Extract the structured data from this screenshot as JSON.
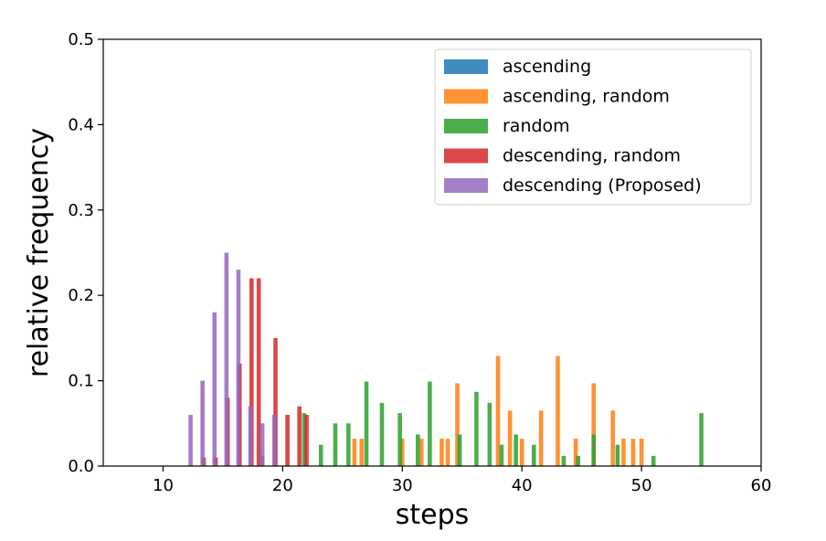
{
  "chart_data": {
    "type": "bar",
    "title": "",
    "xlabel": "steps",
    "ylabel": "relative frequency",
    "xlim": [
      5,
      60
    ],
    "ylim": [
      0,
      0.5
    ],
    "xticks": [
      10,
      20,
      30,
      40,
      50,
      60
    ],
    "yticks": [
      "0.0",
      "0.1",
      "0.2",
      "0.3",
      "0.4",
      "0.5"
    ],
    "legend_position": "top-right",
    "series": [
      {
        "name": "ascending",
        "color": "#1f77b4",
        "points": []
      },
      {
        "name": "ascending, random",
        "color": "#ff7f0e",
        "points": [
          [
            26.0,
            0.032
          ],
          [
            26.6,
            0.032
          ],
          [
            30.0,
            0.032
          ],
          [
            31.6,
            0.032
          ],
          [
            33.3,
            0.032
          ],
          [
            33.8,
            0.032
          ],
          [
            34.6,
            0.097
          ],
          [
            38.0,
            0.129
          ],
          [
            39.0,
            0.065
          ],
          [
            40.0,
            0.032
          ],
          [
            41.6,
            0.065
          ],
          [
            43.0,
            0.129
          ],
          [
            44.5,
            0.032
          ],
          [
            46.0,
            0.097
          ],
          [
            47.6,
            0.065
          ],
          [
            48.5,
            0.032
          ],
          [
            49.3,
            0.032
          ],
          [
            50.0,
            0.032
          ]
        ]
      },
      {
        "name": "random",
        "color": "#2ca02c",
        "points": [
          [
            18.3,
            0.012
          ],
          [
            21.8,
            0.062
          ],
          [
            23.2,
            0.025
          ],
          [
            24.4,
            0.05
          ],
          [
            25.5,
            0.05
          ],
          [
            27.0,
            0.099
          ],
          [
            28.3,
            0.074
          ],
          [
            29.8,
            0.062
          ],
          [
            31.3,
            0.037
          ],
          [
            32.3,
            0.099
          ],
          [
            34.8,
            0.037
          ],
          [
            36.2,
            0.087
          ],
          [
            37.3,
            0.074
          ],
          [
            38.3,
            0.025
          ],
          [
            39.5,
            0.037
          ],
          [
            41.0,
            0.025
          ],
          [
            43.5,
            0.012
          ],
          [
            44.7,
            0.012
          ],
          [
            46.0,
            0.037
          ],
          [
            48.0,
            0.025
          ],
          [
            51.0,
            0.012
          ],
          [
            55.0,
            0.062
          ]
        ]
      },
      {
        "name": "descending, random",
        "color": "#d62728",
        "points": [
          [
            13.4,
            0.01
          ],
          [
            14.4,
            0.01
          ],
          [
            15.4,
            0.08
          ],
          [
            16.4,
            0.12
          ],
          [
            17.4,
            0.22
          ],
          [
            18.0,
            0.22
          ],
          [
            19.4,
            0.15
          ],
          [
            20.4,
            0.06
          ],
          [
            21.4,
            0.07
          ],
          [
            22.0,
            0.06
          ]
        ]
      },
      {
        "name": "descending (Proposed)",
        "color": "#9467bd",
        "points": [
          [
            12.3,
            0.06
          ],
          [
            13.3,
            0.1
          ],
          [
            14.3,
            0.18
          ],
          [
            15.3,
            0.25
          ],
          [
            16.3,
            0.23
          ],
          [
            17.3,
            0.07
          ],
          [
            18.3,
            0.05
          ],
          [
            19.3,
            0.06
          ]
        ]
      }
    ]
  }
}
